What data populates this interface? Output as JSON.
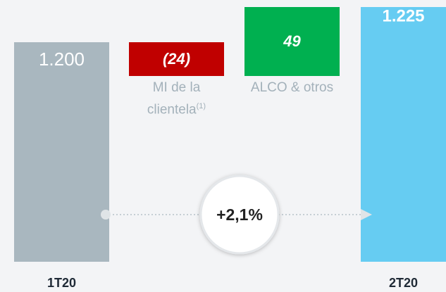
{
  "chart_data": {
    "type": "waterfall",
    "categories": [
      "1T20",
      "MI de la clientela",
      "ALCO & otros",
      "2T20"
    ],
    "category_notes": [
      null,
      "(1)",
      null,
      null
    ],
    "values": [
      1200,
      -24,
      49,
      1225
    ],
    "value_labels": [
      "1.200",
      "(24)",
      "49",
      "1.225"
    ],
    "kinds": [
      "total",
      "delta",
      "delta",
      "total"
    ],
    "colors": [
      "#a9b7bf",
      "#c00000",
      "#00b050",
      "#66ccf2"
    ],
    "ylim": [
      1044,
      1230
    ],
    "annotation": "+2,1%"
  }
}
